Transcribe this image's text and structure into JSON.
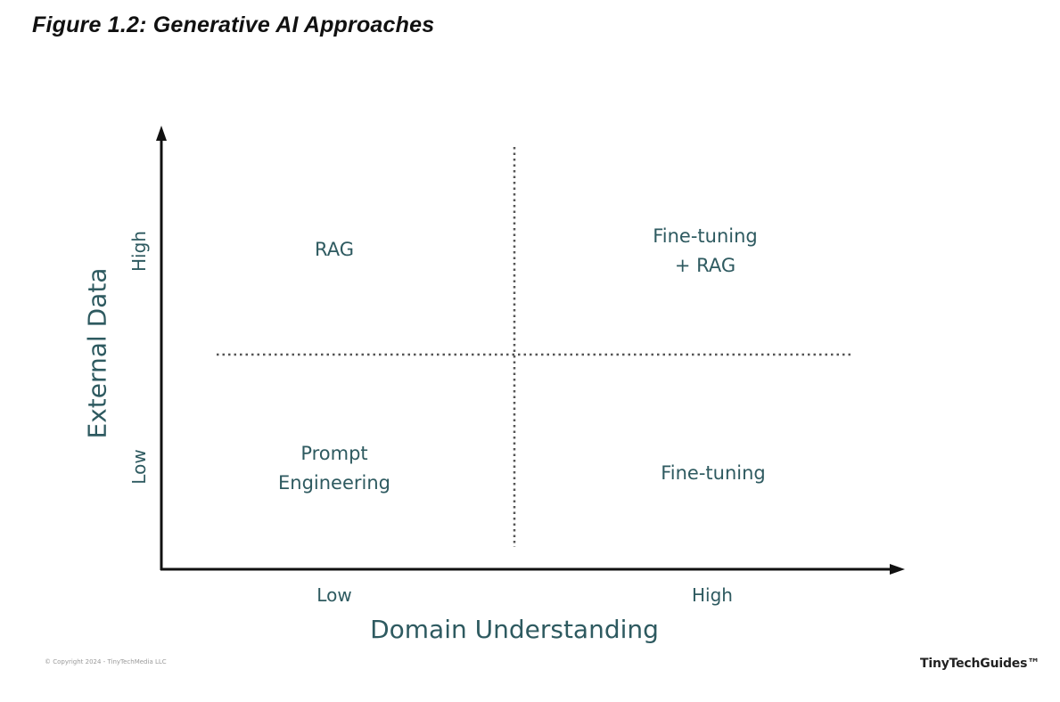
{
  "figure_title": "Figure 1.2: Generative AI Approaches",
  "y_axis": {
    "title": "External Data",
    "high_label": "High",
    "low_label": "Low"
  },
  "x_axis": {
    "title": "Domain Understanding",
    "low_label": "Low",
    "high_label": "High"
  },
  "quadrants": {
    "top_left": "RAG",
    "top_right": "Fine-tuning\n+ RAG",
    "bottom_left": "Prompt\nEngineering",
    "bottom_right": "Fine-tuning"
  },
  "footer": {
    "copyright": "© Copyright 2024 - TinyTechMedia LLC",
    "brand": "TinyTechGuides™"
  },
  "colors": {
    "label": "#2e5a60",
    "axis": "#111111",
    "divider": "#555555"
  }
}
